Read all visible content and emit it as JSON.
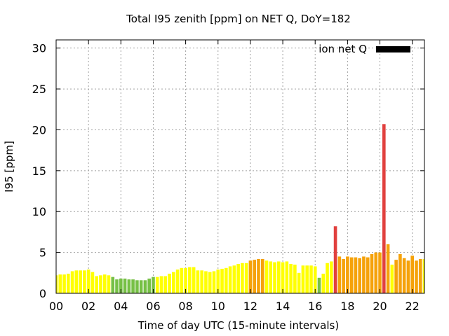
{
  "chart_data": {
    "type": "bar",
    "title": "Total I95 zenith [ppm] on NET Q, DoY=182",
    "xlabel": "Time of day UTC (15-minute intervals)",
    "ylabel": "I95 [ppm]",
    "xlim": [
      0,
      22.75
    ],
    "ylim": [
      0,
      31
    ],
    "x_ticks": [
      "00",
      "02",
      "04",
      "06",
      "08",
      "10",
      "12",
      "14",
      "16",
      "18",
      "20",
      "22"
    ],
    "y_ticks": [
      "0",
      "5",
      "10",
      "15",
      "20",
      "25",
      "30"
    ],
    "grid": true,
    "legend": {
      "position": "top-right",
      "entries": [
        {
          "label": "ion net Q",
          "color": "#000000"
        }
      ]
    },
    "bar_width_hours": 0.2,
    "colors": {
      "yellow": "#ffff00",
      "green": "#76c045",
      "orange": "#f5a20a",
      "red": "#e1403e"
    },
    "series": [
      {
        "x": [
          0.0,
          0.25,
          0.5,
          0.75,
          1.0,
          1.25,
          1.5,
          1.75,
          2.0,
          2.25,
          2.5,
          2.75,
          3.0,
          3.25,
          3.5,
          3.75,
          4.0,
          4.25,
          4.5,
          4.75,
          5.0,
          5.25,
          5.5,
          5.75,
          6.0,
          6.25,
          6.5,
          6.75,
          7.0,
          7.25,
          7.5,
          7.75,
          8.0,
          8.25,
          8.5,
          8.75,
          9.0,
          9.25,
          9.5,
          9.75,
          10.0,
          10.25,
          10.5,
          10.75,
          11.0,
          11.25,
          11.5,
          11.75,
          12.0,
          12.25,
          12.5,
          12.75,
          13.0,
          13.25,
          13.5,
          13.75,
          14.0,
          14.25,
          14.5,
          14.75,
          15.0,
          15.25,
          15.5,
          15.75,
          16.0,
          16.25,
          16.5,
          16.75,
          17.0,
          17.25,
          17.5,
          17.75,
          18.0,
          18.25,
          18.5,
          18.75,
          19.0,
          19.25,
          19.5,
          19.75,
          20.0,
          20.25,
          20.5,
          20.75,
          21.0,
          21.25,
          21.5,
          21.75,
          22.0,
          22.25,
          22.5,
          22.75
        ],
        "values": [
          2.2,
          2.3,
          2.3,
          2.4,
          2.7,
          2.8,
          2.8,
          2.8,
          2.9,
          2.6,
          2.1,
          2.2,
          2.3,
          2.2,
          2.0,
          1.7,
          1.8,
          1.8,
          1.7,
          1.7,
          1.6,
          1.6,
          1.6,
          1.8,
          2.0,
          2.0,
          2.1,
          2.1,
          2.4,
          2.6,
          2.9,
          3.1,
          3.1,
          3.2,
          3.2,
          2.8,
          2.8,
          2.7,
          2.6,
          2.7,
          2.9,
          3.0,
          3.1,
          3.3,
          3.4,
          3.6,
          3.7,
          3.7,
          4.0,
          4.1,
          4.2,
          4.2,
          4.0,
          3.9,
          3.8,
          3.9,
          3.8,
          3.9,
          3.6,
          3.5,
          2.5,
          3.4,
          3.4,
          3.4,
          3.3,
          1.9,
          2.4,
          3.7,
          3.9,
          8.2,
          4.5,
          4.2,
          4.5,
          4.4,
          4.4,
          4.3,
          4.5,
          4.4,
          4.8,
          5.0,
          5.0,
          20.7,
          6.0,
          3.5,
          4.1,
          4.8,
          4.3,
          4.0,
          4.6,
          4.0,
          4.2,
          4.2
        ],
        "colors": [
          "yellow",
          "yellow",
          "yellow",
          "yellow",
          "yellow",
          "yellow",
          "yellow",
          "yellow",
          "yellow",
          "yellow",
          "yellow",
          "yellow",
          "yellow",
          "yellow",
          "green",
          "green",
          "green",
          "green",
          "green",
          "green",
          "green",
          "green",
          "green",
          "green",
          "green",
          "yellow",
          "yellow",
          "yellow",
          "yellow",
          "yellow",
          "yellow",
          "yellow",
          "yellow",
          "yellow",
          "yellow",
          "yellow",
          "yellow",
          "yellow",
          "yellow",
          "yellow",
          "yellow",
          "yellow",
          "yellow",
          "yellow",
          "yellow",
          "yellow",
          "yellow",
          "yellow",
          "orange",
          "orange",
          "orange",
          "orange",
          "yellow",
          "yellow",
          "yellow",
          "yellow",
          "yellow",
          "yellow",
          "yellow",
          "yellow",
          "yellow",
          "yellow",
          "yellow",
          "yellow",
          "yellow",
          "green",
          "yellow",
          "yellow",
          "yellow",
          "red",
          "orange",
          "orange",
          "orange",
          "orange",
          "orange",
          "orange",
          "orange",
          "orange",
          "orange",
          "orange",
          "orange",
          "red",
          "orange",
          "yellow",
          "orange",
          "orange",
          "orange",
          "orange",
          "orange",
          "orange",
          "orange",
          "yellow"
        ]
      }
    ]
  }
}
